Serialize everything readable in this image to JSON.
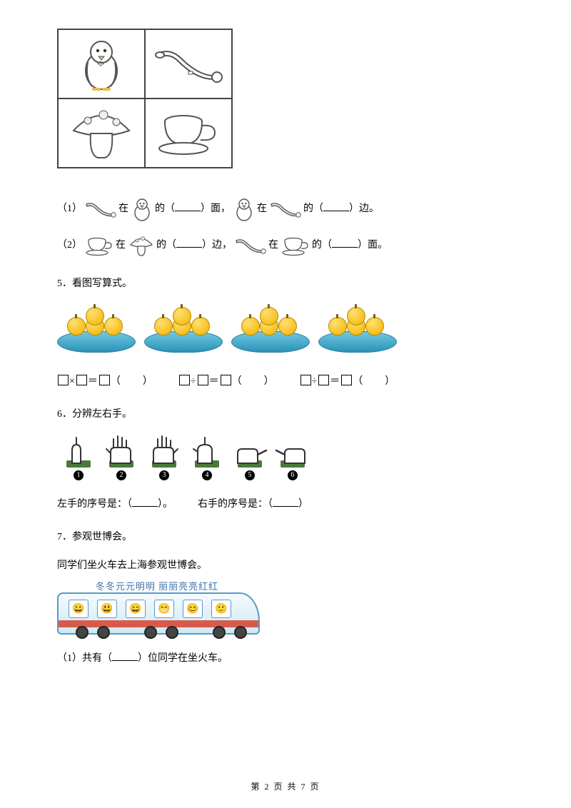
{
  "grid": {
    "border_color": "#444444",
    "cells": [
      [
        "penguin",
        "horn"
      ],
      [
        "mushroom",
        "cup"
      ]
    ]
  },
  "q1": {
    "label": "（1）",
    "seg1_a": "在",
    "seg1_b": "的（",
    "seg1_c": "）面，",
    "seg2_a": "在",
    "seg2_b": "的（",
    "seg2_c": "）边。"
  },
  "q2": {
    "label": "（2）",
    "seg1_a": "在",
    "seg1_b": "的（",
    "seg1_c": "）边，",
    "seg2_a": "在",
    "seg2_b": "的（",
    "seg2_c": "）面。"
  },
  "q5": {
    "num": "5．",
    "title": "看图写算式。",
    "plates": 4,
    "apples_per_plate": 4,
    "apple_colors": {
      "light": "#ffe070",
      "dark": "#f2b200",
      "stroke": "#bb8d00"
    },
    "plate_colors": {
      "top": "#73c7e0",
      "bottom": "#2a92b8",
      "stroke": "#2a7d9c"
    },
    "eq1": {
      "op": "×",
      "tail": "（　　）"
    },
    "eq2": {
      "op": "÷",
      "tail": "（　　）"
    },
    "eq3": {
      "op": "÷",
      "tail": "（　　）"
    }
  },
  "q6": {
    "num": "6．",
    "title": "分辨左右手。",
    "hands": [
      1,
      2,
      3,
      4,
      5,
      6
    ],
    "left_label_a": "左手的序号是：（",
    "left_label_b": "）。",
    "right_label_a": "右手的序号是：（",
    "right_label_b": "）"
  },
  "q7": {
    "num": "7．",
    "title": "参观世博会。",
    "subtitle": "同学们坐火车去上海参观世博会。",
    "train_names": "冬冬元元明明 丽丽亮亮红红",
    "sub1_a": "（1）共有（",
    "sub1_b": "）位同学在坐火车。",
    "windows": 6,
    "colors": {
      "body": "#cfe9f3",
      "border": "#5a99c2",
      "stripe": "#d85a4a",
      "name_color": "#3d74a8"
    }
  },
  "footer": {
    "a": "第 ",
    "page": "2",
    "b": " 页 共 ",
    "total": "7",
    "c": " 页"
  }
}
